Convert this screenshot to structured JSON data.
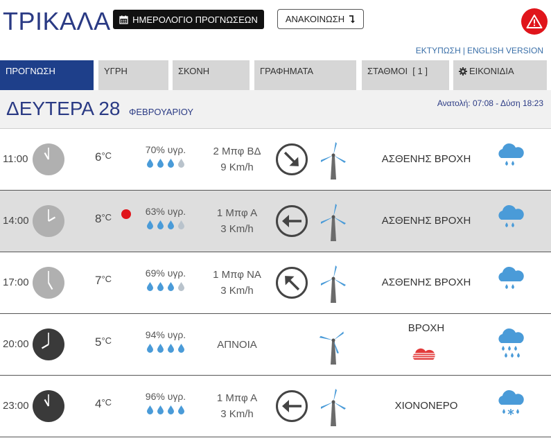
{
  "header": {
    "city": "ΤΡΙΚΑΛΑ",
    "calendar_button": "ΗΜΕΡΟΛΟΓΙΟ ΠΡΟΓΝΩΣΕΩΝ",
    "announce_button": "ΑΝΑΚΟΙΝΩΣΗ",
    "alert_icon": "warning-icon",
    "print_link": "ΕΚΤΥΠΩΣΗ",
    "separator": "|",
    "english_link": "ENGLISH VERSION"
  },
  "tabs": [
    {
      "label": "ΠΡΟΓΝΩΣΗ",
      "active": true
    },
    {
      "label": "ΥΓΡΗ",
      "active": false
    },
    {
      "label": "ΣΚΟΝΗ",
      "active": false
    },
    {
      "label": "ΓΡΑΦΗΜΑΤΑ",
      "active": false
    },
    {
      "label": "ΣΤΑΘΜΟΙ  [ 1 ]",
      "active": false
    },
    {
      "label": "ΕΙΚΟΝΙΔΙΑ",
      "active": false,
      "icon": "gear-icon"
    }
  ],
  "date": {
    "day": "ΔΕΥΤΕΡΑ 28",
    "month": "ΦΕΒΡΟΥΑΡΙΟΥ",
    "sun_times": "Ανατολή: 07:08  - Δύση 18:23"
  },
  "colors": {
    "brand": "#2a3a84",
    "active_tab": "#1e3f8a",
    "alert": "#e0151b",
    "drop_full": "#4a9bd8",
    "drop_empty": "#b9c3cc"
  },
  "forecast": [
    {
      "time": "11:00",
      "clock_hour": 11,
      "night": false,
      "temp": "6",
      "unit": "°C",
      "alert": false,
      "humidity": "70% υγρ.",
      "drops": 3,
      "wind_force": "2 Μπφ ΒΔ",
      "wind_speed": "9 Km/h",
      "wind_dir": "arrow-down-right-icon",
      "turbine_spin": false,
      "condition": "ΑΣΘΕΝΗΣ ΒΡΟΧΗ",
      "weather_icon": "light-rain-icon",
      "shaded": false
    },
    {
      "time": "14:00",
      "clock_hour": 14,
      "night": false,
      "temp": "8",
      "unit": "°C",
      "alert": true,
      "humidity": "63% υγρ.",
      "drops": 3,
      "wind_force": "1 Μπφ Α",
      "wind_speed": "3 Km/h",
      "wind_dir": "arrow-left-icon",
      "turbine_spin": false,
      "condition": "ΑΣΘΕΝΗΣ ΒΡΟΧΗ",
      "weather_icon": "light-rain-icon",
      "shaded": true
    },
    {
      "time": "17:00",
      "clock_hour": 17,
      "night": false,
      "temp": "7",
      "unit": "°C",
      "alert": false,
      "humidity": "69% υγρ.",
      "drops": 3,
      "wind_force": "1 Μπφ ΝΑ",
      "wind_speed": "3 Km/h",
      "wind_dir": "arrow-up-left-icon",
      "turbine_spin": false,
      "condition": "ΑΣΘΕΝΗΣ ΒΡΟΧΗ",
      "weather_icon": "light-rain-icon",
      "shaded": false
    },
    {
      "time": "20:00",
      "clock_hour": 20,
      "night": true,
      "temp": "5",
      "unit": "°C",
      "alert": false,
      "humidity": "94% υγρ.",
      "drops": 4,
      "wind_force": "ΑΠΝΟΙΑ",
      "wind_speed": "",
      "wind_dir": "",
      "turbine_spin": true,
      "condition": "ΒΡΟΧΗ",
      "condition_sub_icon": "rain-intensity-icon",
      "weather_icon": "rain-icon",
      "shaded": false
    },
    {
      "time": "23:00",
      "clock_hour": 23,
      "night": true,
      "temp": "4",
      "unit": "°C",
      "alert": false,
      "humidity": "96% υγρ.",
      "drops": 4,
      "wind_force": "1 Μπφ Α",
      "wind_speed": "3 Km/h",
      "wind_dir": "arrow-left-icon",
      "turbine_spin": false,
      "condition": "ΧΙΟΝΟΝΕΡΟ",
      "weather_icon": "sleet-icon",
      "shaded": false
    }
  ]
}
